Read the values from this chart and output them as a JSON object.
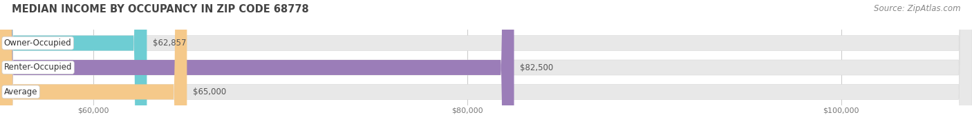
{
  "title": "MEDIAN INCOME BY OCCUPANCY IN ZIP CODE 68778",
  "source": "Source: ZipAtlas.com",
  "categories": [
    "Owner-Occupied",
    "Renter-Occupied",
    "Average"
  ],
  "values": [
    62857,
    82500,
    65000
  ],
  "bar_colors": [
    "#6ecdd3",
    "#9b7db8",
    "#f5c98a"
  ],
  "bar_bg_color": "#e8e8e8",
  "label_texts": [
    "$62,857",
    "$82,500",
    "$65,000"
  ],
  "xmin": 55000,
  "xmax": 107000,
  "xticks": [
    60000,
    80000,
    100000
  ],
  "xtick_labels": [
    "$60,000",
    "$80,000",
    "$100,000"
  ],
  "title_fontsize": 10.5,
  "source_fontsize": 8.5,
  "bar_label_fontsize": 8.5,
  "cat_label_fontsize": 8.5,
  "figure_bg": "#ffffff",
  "bar_height": 0.62
}
